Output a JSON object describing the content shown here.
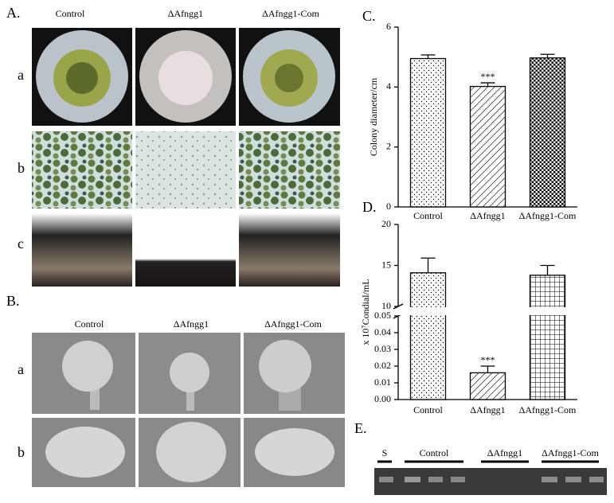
{
  "panel_A": {
    "label": "A.",
    "columns": [
      "Control",
      "ΔAfngg1",
      "ΔAfngg1-Com"
    ],
    "rows": [
      "a",
      "b",
      "c"
    ]
  },
  "panel_B": {
    "label": "B.",
    "columns": [
      "Control",
      "ΔAfngg1",
      "ΔAfngg1-Com"
    ],
    "rows": [
      "a",
      "b"
    ]
  },
  "panel_E": {
    "label": "E.",
    "lanes": [
      "S",
      "Control",
      "ΔAfngg1",
      "ΔAfngg1-Com"
    ]
  },
  "chart_data": [
    {
      "type": "bar",
      "label": "C.",
      "ylabel": "Colony diameter/cm",
      "categories": [
        "Control",
        "ΔAfngg1",
        "ΔAfngg1-Com"
      ],
      "values": [
        4.95,
        4.02,
        4.97
      ],
      "errors": [
        0.12,
        0.12,
        0.12
      ],
      "ylim": [
        0,
        6
      ],
      "yticks": [
        0,
        2,
        4,
        6
      ],
      "annotation": "***",
      "annotation_category": "ΔAfngg1"
    },
    {
      "type": "broken-bar",
      "label": "D.",
      "ylabel": "x 10⁷Condial/mL",
      "categories": [
        "Control",
        "ΔAfngg1",
        "ΔAfngg1-Com"
      ],
      "values": [
        14.1,
        0.016,
        13.8
      ],
      "errors": [
        1.8,
        0.004,
        1.2
      ],
      "ylim_lower": [
        0,
        0.05
      ],
      "yticks_lower": [
        {
          "value": 0,
          "label": "0.00"
        },
        0.01,
        0.02,
        0.03,
        0.04,
        0.05
      ],
      "ylim_upper": [
        10,
        20
      ],
      "yticks_upper": [
        10,
        15,
        20
      ],
      "annotation": "***",
      "annotation_category": "ΔAfngg1"
    }
  ]
}
